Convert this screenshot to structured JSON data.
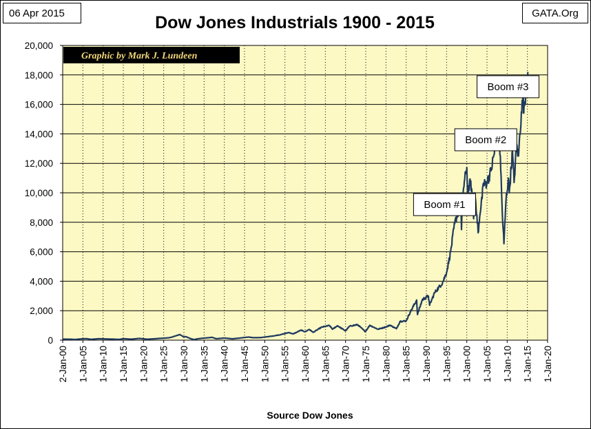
{
  "header": {
    "date": "06 Apr 2015",
    "source_site": "GATA.Org"
  },
  "chart_data": {
    "type": "line",
    "title": "Dow Jones Industrials 1900 - 2015",
    "xlabel": "Source Dow Jones",
    "ylabel": "",
    "credit": "Graphic by Mark J. Lundeen",
    "xlim": [
      1900,
      2020
    ],
    "ylim": [
      0,
      20000
    ],
    "y_ticks": [
      0,
      2000,
      4000,
      6000,
      8000,
      10000,
      12000,
      14000,
      16000,
      18000,
      20000
    ],
    "y_tick_labels": [
      "0",
      "2,000",
      "4,000",
      "6,000",
      "8,000",
      "10,000",
      "12,000",
      "14,000",
      "16,000",
      "18,000",
      "20,000"
    ],
    "x_ticks": [
      1900,
      1905,
      1910,
      1915,
      1920,
      1925,
      1930,
      1935,
      1940,
      1945,
      1950,
      1955,
      1960,
      1965,
      1970,
      1975,
      1980,
      1985,
      1990,
      1995,
      2000,
      2005,
      2010,
      2015,
      2020
    ],
    "x_tick_labels": [
      "2-Jan-00",
      "1-Jan-05",
      "1-Jan-10",
      "1-Jan-15",
      "1-Jan-20",
      "1-Jan-25",
      "1-Jan-30",
      "1-Jan-35",
      "1-Jan-40",
      "1-Jan-45",
      "1-Jan-50",
      "1-Jan-55",
      "1-Jan-60",
      "1-Jan-65",
      "1-Jan-70",
      "1-Jan-75",
      "1-Jan-80",
      "1-Jan-85",
      "1-Jan-90",
      "1-Jan-95",
      "1-Jan-00",
      "1-Jan-05",
      "1-Jan-10",
      "1-Jan-15",
      "1-Jan-20"
    ],
    "grid": true,
    "background_color": "#fdf9c4",
    "line_color": "#1f3a5f",
    "annotations": [
      {
        "text": "Boom #1",
        "x": 1994.5,
        "y": 9200
      },
      {
        "text": "Boom #2",
        "x": 2004.7,
        "y": 13600
      },
      {
        "text": "Boom #3",
        "x": 2010.2,
        "y": 17200
      }
    ],
    "series": [
      {
        "values": [
          [
            1900,
            68
          ],
          [
            1902,
            64
          ],
          [
            1903,
            48
          ],
          [
            1905,
            96
          ],
          [
            1906,
            100
          ],
          [
            1907,
            58
          ],
          [
            1909,
            99
          ],
          [
            1911,
            82
          ],
          [
            1914,
            54
          ],
          [
            1915,
            99
          ],
          [
            1917,
            68
          ],
          [
            1919,
            119
          ],
          [
            1921,
            64
          ],
          [
            1924,
            120
          ],
          [
            1926,
            155
          ],
          [
            1927,
            200
          ],
          [
            1928,
            300
          ],
          [
            1929,
            381
          ],
          [
            1929.9,
            230
          ],
          [
            1930.5,
            240
          ],
          [
            1931.5,
            120
          ],
          [
            1932.5,
            41
          ],
          [
            1933.5,
            100
          ],
          [
            1935,
            140
          ],
          [
            1937,
            190
          ],
          [
            1938,
            99
          ],
          [
            1940,
            150
          ],
          [
            1942,
            93
          ],
          [
            1944,
            150
          ],
          [
            1946,
            212
          ],
          [
            1947,
            170
          ],
          [
            1949,
            175
          ],
          [
            1950,
            210
          ],
          [
            1952,
            280
          ],
          [
            1954,
            380
          ],
          [
            1956,
            520
          ],
          [
            1957,
            420
          ],
          [
            1959,
            680
          ],
          [
            1960,
            570
          ],
          [
            1961,
            730
          ],
          [
            1962,
            535
          ],
          [
            1964,
            870
          ],
          [
            1966,
            995
          ],
          [
            1966.8,
            744
          ],
          [
            1968,
            980
          ],
          [
            1970,
            630
          ],
          [
            1971,
            950
          ],
          [
            1973,
            1051
          ],
          [
            1974.9,
            577
          ],
          [
            1976,
            1010
          ],
          [
            1978,
            740
          ],
          [
            1980,
            900
          ],
          [
            1981,
            1020
          ],
          [
            1982.6,
            776
          ],
          [
            1983.5,
            1280
          ],
          [
            1985,
            1300
          ],
          [
            1986,
            1900
          ],
          [
            1987.6,
            2722
          ],
          [
            1987.8,
            1738
          ],
          [
            1989,
            2750
          ],
          [
            1990.5,
            2999
          ],
          [
            1990.8,
            2365
          ],
          [
            1992,
            3200
          ],
          [
            1994,
            3900
          ],
          [
            1995,
            4600
          ],
          [
            1996,
            6000
          ],
          [
            1997,
            7900
          ],
          [
            1998.5,
            9300
          ],
          [
            1998.7,
            7500
          ],
          [
            1999,
            10000
          ],
          [
            2000,
            11723
          ],
          [
            2000.2,
            10000
          ],
          [
            2001,
            10800
          ],
          [
            2001.7,
            8236
          ],
          [
            2002,
            10000
          ],
          [
            2002.5,
            8500
          ],
          [
            2002.8,
            7286
          ],
          [
            2003.5,
            9000
          ],
          [
            2004,
            10500
          ],
          [
            2005,
            10700
          ],
          [
            2006,
            11500
          ],
          [
            2007,
            13000
          ],
          [
            2007.8,
            14165
          ],
          [
            2008.3,
            12500
          ],
          [
            2008.8,
            8500
          ],
          [
            2009.2,
            6547
          ],
          [
            2009.7,
            9500
          ],
          [
            2010.3,
            11000
          ],
          [
            2010.5,
            10000
          ],
          [
            2011.3,
            12800
          ],
          [
            2011.7,
            10700
          ],
          [
            2012.3,
            13200
          ],
          [
            2012.8,
            12500
          ],
          [
            2013.5,
            15500
          ],
          [
            2014,
            16500
          ],
          [
            2014.1,
            15400
          ],
          [
            2014.8,
            17500
          ],
          [
            2015.1,
            18200
          ]
        ]
      }
    ]
  }
}
